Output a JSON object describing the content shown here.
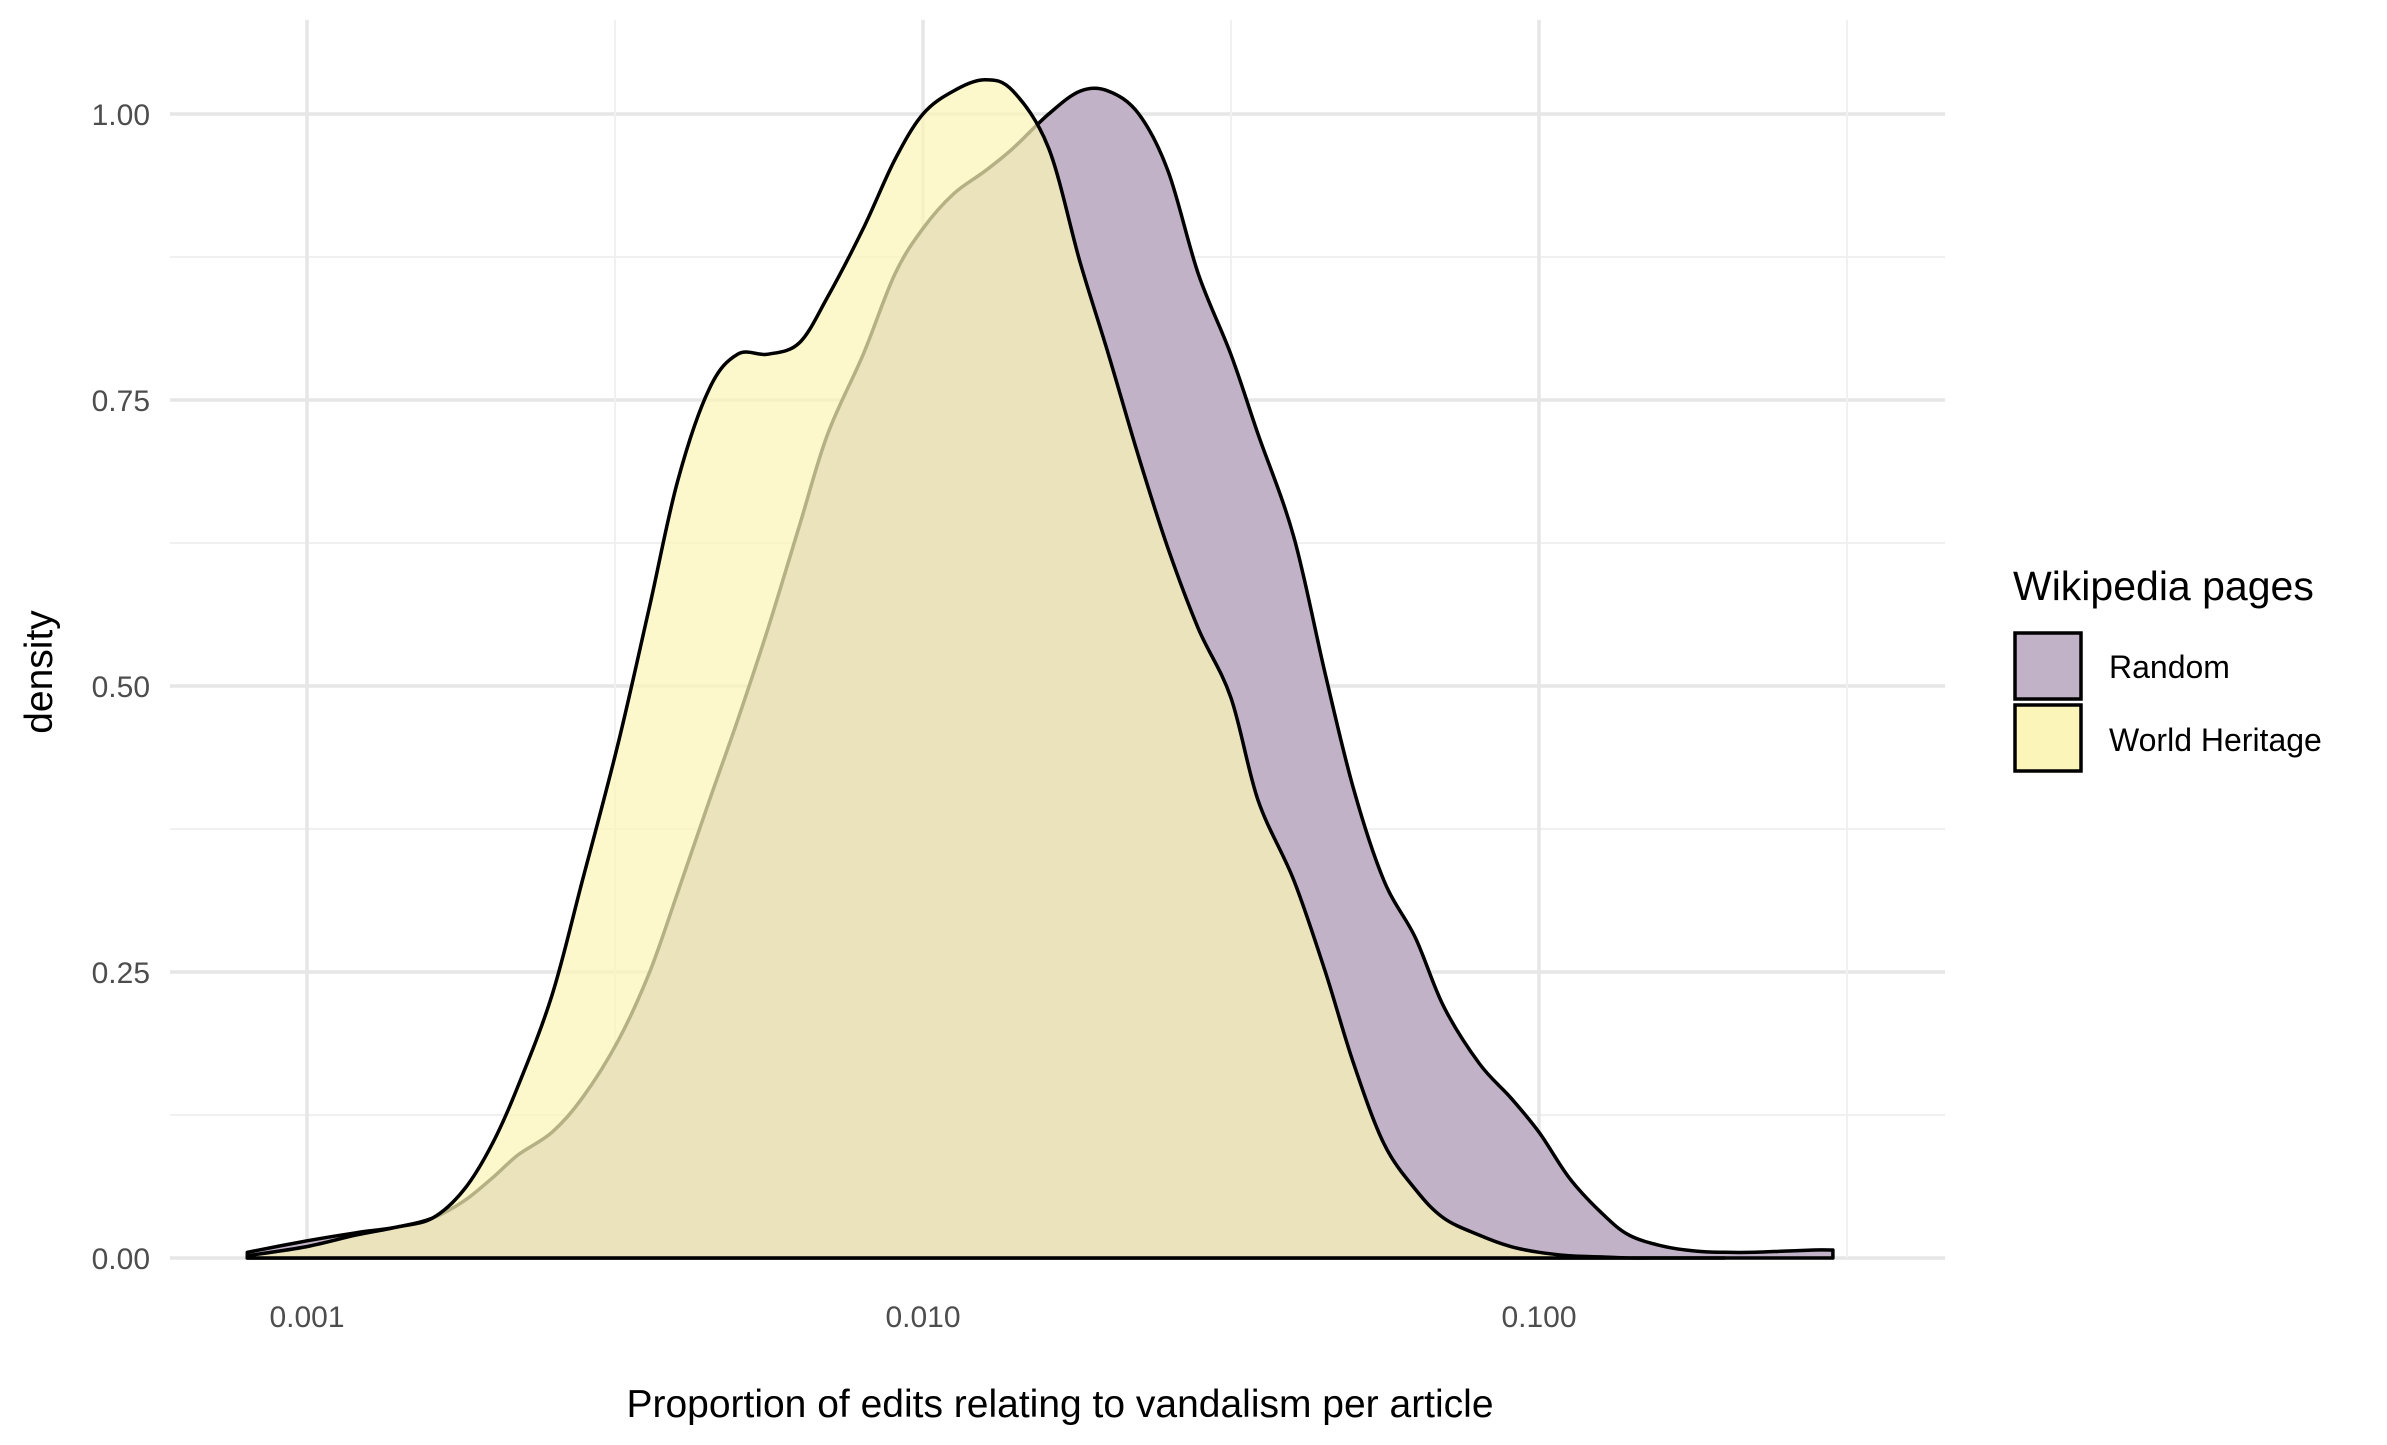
{
  "chart_data": {
    "type": "area",
    "xlabel": "Proportion of edits relating to vandalism per article",
    "ylabel": "density",
    "x_scale": "log10",
    "xlim": [
      0.0008,
      0.32
    ],
    "ylim": [
      0,
      1.05
    ],
    "x_ticks": [
      0.001,
      0.01,
      0.1
    ],
    "x_tick_labels": [
      "0.001",
      "0.010",
      "0.100"
    ],
    "y_ticks": [
      0,
      0.25,
      0.5,
      0.75,
      1.0
    ],
    "y_tick_labels": [
      "0.00",
      "0.25",
      "0.50",
      "0.75",
      "1.00"
    ],
    "grid": true,
    "legend": {
      "title": "Wikipedia pages",
      "placement": "right"
    },
    "series": [
      {
        "name": "Random",
        "color": "#c1b2c7",
        "x": [
          0.0008,
          0.001,
          0.0012,
          0.0014,
          0.0016,
          0.0018,
          0.002,
          0.0022,
          0.0025,
          0.0028,
          0.0032,
          0.0036,
          0.004,
          0.0045,
          0.005,
          0.0056,
          0.0063,
          0.007,
          0.008,
          0.009,
          0.01,
          0.0112,
          0.0126,
          0.014,
          0.016,
          0.018,
          0.02,
          0.0224,
          0.025,
          0.028,
          0.0316,
          0.035,
          0.04,
          0.045,
          0.05,
          0.056,
          0.063,
          0.07,
          0.08,
          0.09,
          0.1,
          0.112,
          0.126,
          0.14,
          0.16,
          0.18,
          0.2,
          0.224,
          0.25,
          0.28,
          0.3
        ],
        "y": [
          0.005,
          0.015,
          0.022,
          0.027,
          0.035,
          0.05,
          0.07,
          0.09,
          0.11,
          0.14,
          0.19,
          0.25,
          0.32,
          0.4,
          0.47,
          0.55,
          0.64,
          0.72,
          0.79,
          0.86,
          0.9,
          0.93,
          0.95,
          0.97,
          1.0,
          1.02,
          1.02,
          1.0,
          0.95,
          0.86,
          0.79,
          0.72,
          0.63,
          0.51,
          0.41,
          0.33,
          0.28,
          0.22,
          0.17,
          0.14,
          0.11,
          0.07,
          0.04,
          0.02,
          0.01,
          0.006,
          0.005,
          0.005,
          0.006,
          0.007,
          0.007
        ]
      },
      {
        "name": "World Heritage",
        "color": "#fbf5b9",
        "x": [
          0.0008,
          0.001,
          0.0012,
          0.0014,
          0.0016,
          0.0018,
          0.002,
          0.0022,
          0.0025,
          0.0028,
          0.0032,
          0.0036,
          0.004,
          0.0045,
          0.005,
          0.0056,
          0.0063,
          0.007,
          0.008,
          0.009,
          0.01,
          0.0112,
          0.0126,
          0.014,
          0.016,
          0.018,
          0.02,
          0.0224,
          0.025,
          0.028,
          0.0316,
          0.035,
          0.04,
          0.045,
          0.05,
          0.056,
          0.063,
          0.07,
          0.08,
          0.09,
          0.1,
          0.112,
          0.126,
          0.14,
          0.16,
          0.18,
          0.2
        ],
        "y": [
          0.002,
          0.01,
          0.02,
          0.027,
          0.035,
          0.06,
          0.1,
          0.15,
          0.23,
          0.33,
          0.45,
          0.57,
          0.68,
          0.76,
          0.79,
          0.79,
          0.8,
          0.84,
          0.9,
          0.96,
          1.0,
          1.02,
          1.03,
          1.02,
          0.97,
          0.87,
          0.79,
          0.7,
          0.62,
          0.55,
          0.49,
          0.4,
          0.33,
          0.25,
          0.17,
          0.1,
          0.06,
          0.035,
          0.02,
          0.01,
          0.005,
          0.002,
          0.001,
          0.0,
          0.0,
          0.0,
          0.0
        ]
      }
    ]
  }
}
